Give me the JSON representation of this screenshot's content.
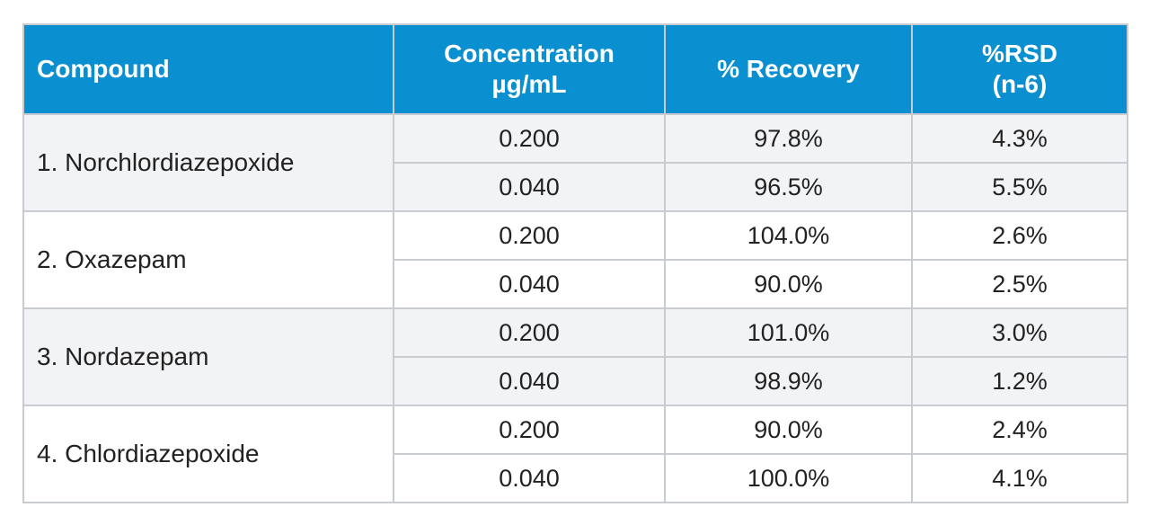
{
  "table": {
    "headers": {
      "compound": "Compound",
      "concentration_line1": "Concentration",
      "concentration_line2": "µg/mL",
      "recovery": "% Recovery",
      "rsd_line1": "%RSD",
      "rsd_line2": "(n-6)"
    },
    "colors": {
      "header_background": "#0a8fd0",
      "header_text": "#ffffff",
      "shaded_row": "#f2f3f5",
      "border": "#c8ccd0"
    },
    "rows": [
      {
        "compound": "1. Norchlordiazepoxide",
        "levels": [
          {
            "concentration": "0.200",
            "recovery": "97.8%",
            "rsd": "4.3%"
          },
          {
            "concentration": "0.040",
            "recovery": "96.5%",
            "rsd": "5.5%"
          }
        ]
      },
      {
        "compound": "2. Oxazepam",
        "levels": [
          {
            "concentration": "0.200",
            "recovery": "104.0%",
            "rsd": "2.6%"
          },
          {
            "concentration": "0.040",
            "recovery": "90.0%",
            "rsd": "2.5%"
          }
        ]
      },
      {
        "compound": "3. Nordazepam",
        "levels": [
          {
            "concentration": "0.200",
            "recovery": "101.0%",
            "rsd": "3.0%"
          },
          {
            "concentration": "0.040",
            "recovery": "98.9%",
            "rsd": "1.2%"
          }
        ]
      },
      {
        "compound": "4. Chlordiazepoxide",
        "levels": [
          {
            "concentration": "0.200",
            "recovery": "90.0%",
            "rsd": "2.4%"
          },
          {
            "concentration": "0.040",
            "recovery": "100.0%",
            "rsd": "4.1%"
          }
        ]
      }
    ]
  }
}
